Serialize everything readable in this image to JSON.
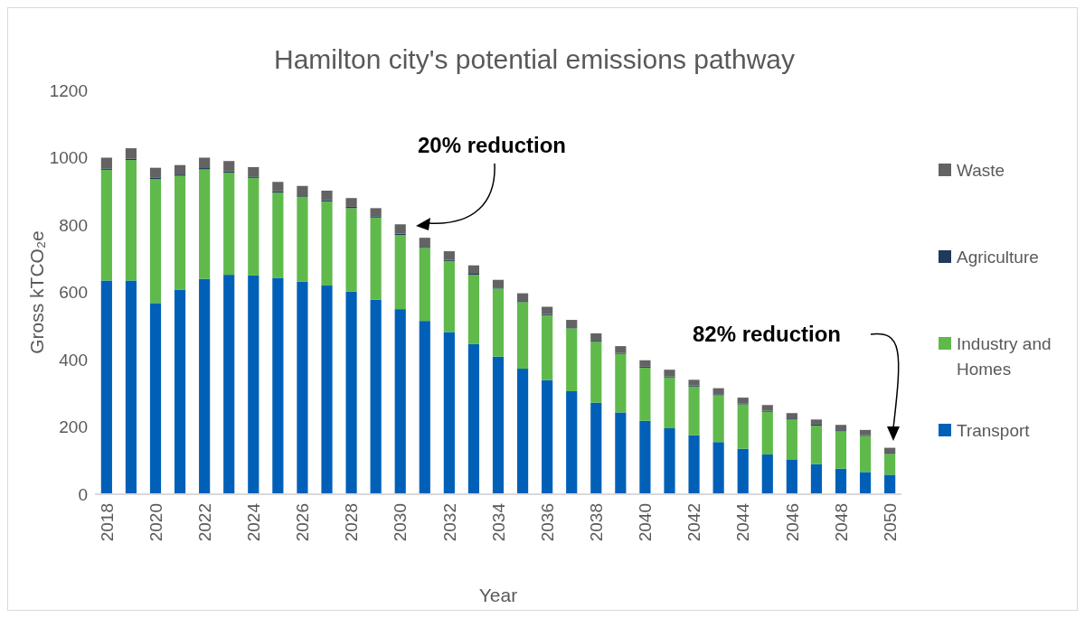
{
  "chart_data": {
    "type": "bar",
    "title": "Hamilton city's potential emissions pathway",
    "xlabel": "Year",
    "ylabel": "Gross kTCO₂e",
    "categories": [
      "2018",
      null,
      "2020",
      null,
      "2022",
      null,
      "2024",
      null,
      "2026",
      null,
      "2028",
      null,
      "2030",
      null,
      "2032",
      null,
      "2034",
      null,
      "2036",
      null,
      "2038",
      null,
      "2040",
      null,
      "2042",
      null,
      "2044",
      null,
      "2046",
      null,
      "2048",
      null,
      "2050"
    ],
    "stacked": true,
    "ylim": [
      0,
      1200
    ],
    "yticks": [
      0,
      200,
      400,
      600,
      800,
      1000,
      1200
    ],
    "grid": false,
    "legend": "right",
    "series": [
      {
        "name": "Transport",
        "color": "#0060b8",
        "values": [
          635,
          635,
          568,
          608,
          640,
          652,
          650,
          643,
          632,
          620,
          602,
          578,
          550,
          515,
          482,
          446,
          409,
          373,
          339,
          306,
          272,
          243,
          218,
          196,
          175,
          155,
          135,
          118,
          102,
          89,
          76,
          66,
          58
        ]
      },
      {
        "name": "Industry and Homes",
        "color": "#5fba4b",
        "values": [
          329,
          358,
          368,
          338,
          325,
          303,
          290,
          253,
          252,
          250,
          248,
          244,
          220,
          217,
          211,
          206,
          202,
          198,
          193,
          187,
          181,
          174,
          158,
          151,
          145,
          139,
          132,
          127,
          120,
          115,
          111,
          107,
          62
        ]
      },
      {
        "name": "Agriculture",
        "color": "#1f3a5a",
        "values": [
          4,
          4,
          4,
          4,
          4,
          4,
          4,
          4,
          4,
          4,
          4,
          4,
          4,
          3,
          3,
          3,
          3,
          3,
          3,
          3,
          3,
          3,
          3,
          3,
          3,
          3,
          3,
          3,
          3,
          3,
          3,
          3,
          3
        ]
      },
      {
        "name": "Waste",
        "color": "#636363",
        "values": [
          32,
          31,
          30,
          28,
          31,
          31,
          28,
          28,
          28,
          28,
          26,
          24,
          28,
          27,
          26,
          25,
          23,
          23,
          22,
          22,
          22,
          20,
          19,
          20,
          17,
          18,
          17,
          17,
          16,
          15,
          16,
          15,
          15
        ]
      }
    ],
    "annotations": [
      "20% reduction",
      "82% reduction"
    ]
  }
}
